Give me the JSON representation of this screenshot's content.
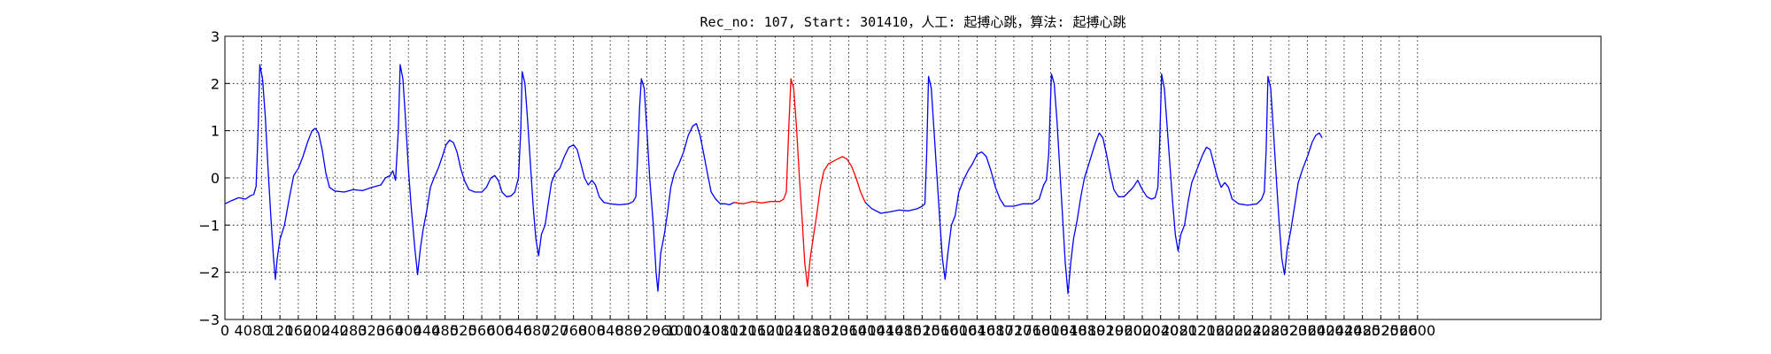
{
  "chart_data": {
    "type": "line",
    "title": "Rec_no: 107, Start: 301410，人工: 起搏心跳，算法: 起搏心跳",
    "xlabel": "",
    "ylabel": "",
    "xlim": [
      0,
      3000
    ],
    "ylim": [
      -3,
      3
    ],
    "grid": true,
    "grid_style": "dotted",
    "xticks": [
      0,
      40,
      80,
      120,
      160,
      200,
      240,
      280,
      320,
      360,
      400,
      440,
      480,
      520,
      560,
      600,
      640,
      680,
      720,
      760,
      800,
      840,
      880,
      920,
      960,
      1000,
      1040,
      1080,
      1120,
      1160,
      1200,
      1240,
      1280,
      1320,
      1360,
      1400,
      1440,
      1480,
      1520,
      1560,
      1600,
      1640,
      1680,
      1720,
      1760,
      1800,
      1840,
      1880,
      1920,
      1960,
      2000,
      2040,
      2080,
      2120,
      2160,
      2200,
      2240,
      2280,
      2320,
      2360,
      2400,
      2440,
      2480,
      2520,
      2560,
      2600
    ],
    "yticks": [
      -3,
      -2,
      -1,
      0,
      1,
      2,
      3
    ],
    "ytick_labels": [
      "−3",
      "−2",
      "−1",
      "0",
      "1",
      "2",
      "3"
    ],
    "colors": {
      "normal": "#0000ff",
      "highlight": "#ff0000"
    },
    "series": [
      {
        "color": "#0000ff",
        "points": [
          [
            0,
            -0.55
          ],
          [
            15,
            -0.48
          ],
          [
            30,
            -0.42
          ],
          [
            45,
            -0.45
          ],
          [
            55,
            -0.38
          ],
          [
            63,
            -0.35
          ],
          [
            68,
            -0.18
          ],
          [
            72,
            0.9
          ],
          [
            76,
            2.4
          ],
          [
            82,
            2.1
          ],
          [
            88,
            1.3
          ],
          [
            94,
            0.2
          ],
          [
            100,
            -0.8
          ],
          [
            106,
            -1.7
          ],
          [
            110,
            -2.15
          ],
          [
            114,
            -1.7
          ],
          [
            120,
            -1.3
          ],
          [
            130,
            -1.0
          ],
          [
            140,
            -0.45
          ],
          [
            150,
            0.05
          ],
          [
            160,
            0.2
          ],
          [
            170,
            0.45
          ],
          [
            180,
            0.75
          ],
          [
            190,
            1.0
          ],
          [
            197,
            1.05
          ],
          [
            204,
            0.95
          ],
          [
            212,
            0.6
          ],
          [
            220,
            0.1
          ],
          [
            228,
            -0.2
          ],
          [
            240,
            -0.28
          ],
          [
            260,
            -0.3
          ],
          [
            280,
            -0.25
          ],
          [
            300,
            -0.27
          ],
          [
            320,
            -0.2
          ],
          [
            340,
            -0.15
          ],
          [
            350,
            0.0
          ],
          [
            360,
            0.05
          ],
          [
            366,
            0.15
          ],
          [
            372,
            -0.05
          ],
          [
            378,
            1.0
          ],
          [
            382,
            2.4
          ],
          [
            388,
            2.1
          ],
          [
            394,
            1.2
          ],
          [
            400,
            0.2
          ],
          [
            406,
            -0.6
          ],
          [
            414,
            -1.5
          ],
          [
            420,
            -2.05
          ],
          [
            426,
            -1.5
          ],
          [
            432,
            -1.1
          ],
          [
            440,
            -0.7
          ],
          [
            448,
            -0.2
          ],
          [
            456,
            0.0
          ],
          [
            465,
            0.2
          ],
          [
            474,
            0.45
          ],
          [
            482,
            0.7
          ],
          [
            490,
            0.8
          ],
          [
            498,
            0.75
          ],
          [
            506,
            0.55
          ],
          [
            514,
            0.2
          ],
          [
            522,
            -0.05
          ],
          [
            532,
            -0.25
          ],
          [
            545,
            -0.3
          ],
          [
            560,
            -0.3
          ],
          [
            570,
            -0.2
          ],
          [
            580,
            0.0
          ],
          [
            588,
            0.05
          ],
          [
            596,
            -0.05
          ],
          [
            604,
            -0.3
          ],
          [
            614,
            -0.4
          ],
          [
            624,
            -0.38
          ],
          [
            632,
            -0.3
          ],
          [
            640,
            0.0
          ],
          [
            645,
            1.0
          ],
          [
            648,
            2.25
          ],
          [
            654,
            2.0
          ],
          [
            660,
            1.2
          ],
          [
            666,
            0.3
          ],
          [
            672,
            -0.6
          ],
          [
            678,
            -1.3
          ],
          [
            684,
            -1.65
          ],
          [
            690,
            -1.2
          ],
          [
            698,
            -1.0
          ],
          [
            704,
            -0.6
          ],
          [
            712,
            -0.1
          ],
          [
            720,
            0.1
          ],
          [
            730,
            0.2
          ],
          [
            740,
            0.45
          ],
          [
            750,
            0.65
          ],
          [
            760,
            0.7
          ],
          [
            768,
            0.6
          ],
          [
            776,
            0.3
          ],
          [
            784,
            0.0
          ],
          [
            792,
            -0.15
          ],
          [
            800,
            -0.05
          ],
          [
            808,
            -0.15
          ],
          [
            816,
            -0.4
          ],
          [
            826,
            -0.52
          ],
          [
            840,
            -0.55
          ],
          [
            860,
            -0.57
          ],
          [
            880,
            -0.55
          ],
          [
            890,
            -0.5
          ],
          [
            896,
            -0.4
          ],
          [
            900,
            0.5
          ],
          [
            904,
            1.5
          ],
          [
            908,
            2.1
          ],
          [
            914,
            1.9
          ],
          [
            920,
            1.0
          ],
          [
            926,
            0.0
          ],
          [
            934,
            -1.0
          ],
          [
            940,
            -2.0
          ],
          [
            944,
            -2.4
          ],
          [
            950,
            -1.6
          ],
          [
            958,
            -1.2
          ],
          [
            964,
            -0.8
          ],
          [
            972,
            -0.2
          ],
          [
            980,
            0.1
          ],
          [
            990,
            0.3
          ],
          [
            1000,
            0.55
          ],
          [
            1010,
            0.9
          ],
          [
            1020,
            1.1
          ],
          [
            1028,
            1.15
          ],
          [
            1036,
            0.9
          ],
          [
            1044,
            0.5
          ],
          [
            1052,
            0.1
          ],
          [
            1060,
            -0.3
          ],
          [
            1070,
            -0.45
          ],
          [
            1080,
            -0.55
          ],
          [
            1090,
            -0.55
          ],
          [
            1100,
            -0.57
          ],
          [
            1110,
            -0.52
          ]
        ]
      },
      {
        "color": "#ff0000",
        "points": [
          [
            1110,
            -0.52
          ],
          [
            1130,
            -0.55
          ],
          [
            1150,
            -0.5
          ],
          [
            1170,
            -0.53
          ],
          [
            1190,
            -0.5
          ],
          [
            1210,
            -0.5
          ],
          [
            1218,
            -0.45
          ],
          [
            1224,
            -0.3
          ],
          [
            1230,
            1.2
          ],
          [
            1234,
            2.1
          ],
          [
            1240,
            1.9
          ],
          [
            1246,
            1.1
          ],
          [
            1252,
            0.1
          ],
          [
            1258,
            -0.8
          ],
          [
            1264,
            -1.8
          ],
          [
            1270,
            -2.3
          ],
          [
            1276,
            -1.7
          ],
          [
            1282,
            -1.3
          ],
          [
            1290,
            -0.8
          ],
          [
            1298,
            -0.2
          ],
          [
            1306,
            0.15
          ],
          [
            1316,
            0.3
          ],
          [
            1326,
            0.35
          ],
          [
            1336,
            0.4
          ],
          [
            1346,
            0.45
          ],
          [
            1356,
            0.4
          ],
          [
            1366,
            0.25
          ],
          [
            1376,
            0.0
          ],
          [
            1386,
            -0.3
          ],
          [
            1396,
            -0.52
          ]
        ]
      },
      {
        "color": "#0000ff",
        "points": [
          [
            1396,
            -0.52
          ],
          [
            1410,
            -0.65
          ],
          [
            1430,
            -0.75
          ],
          [
            1450,
            -0.72
          ],
          [
            1470,
            -0.68
          ],
          [
            1490,
            -0.7
          ],
          [
            1510,
            -0.65
          ],
          [
            1520,
            -0.6
          ],
          [
            1526,
            -0.55
          ],
          [
            1530,
            0.5
          ],
          [
            1534,
            2.15
          ],
          [
            1540,
            1.9
          ],
          [
            1546,
            1.0
          ],
          [
            1552,
            0.1
          ],
          [
            1558,
            -0.8
          ],
          [
            1564,
            -1.7
          ],
          [
            1570,
            -2.15
          ],
          [
            1576,
            -1.6
          ],
          [
            1584,
            -1.0
          ],
          [
            1592,
            -0.8
          ],
          [
            1600,
            -0.3
          ],
          [
            1610,
            -0.05
          ],
          [
            1620,
            0.15
          ],
          [
            1630,
            0.3
          ],
          [
            1640,
            0.5
          ],
          [
            1650,
            0.55
          ],
          [
            1660,
            0.45
          ],
          [
            1670,
            0.15
          ],
          [
            1680,
            -0.2
          ],
          [
            1690,
            -0.45
          ],
          [
            1700,
            -0.6
          ],
          [
            1720,
            -0.6
          ],
          [
            1740,
            -0.55
          ],
          [
            1760,
            -0.55
          ],
          [
            1775,
            -0.45
          ],
          [
            1785,
            -0.15
          ],
          [
            1791,
            -0.05
          ],
          [
            1796,
            0.5
          ],
          [
            1802,
            2.2
          ],
          [
            1808,
            2.0
          ],
          [
            1814,
            1.2
          ],
          [
            1820,
            0.2
          ],
          [
            1826,
            -0.8
          ],
          [
            1832,
            -1.8
          ],
          [
            1838,
            -2.45
          ],
          [
            1844,
            -1.8
          ],
          [
            1850,
            -1.3
          ],
          [
            1858,
            -0.9
          ],
          [
            1866,
            -0.4
          ],
          [
            1874,
            0.0
          ],
          [
            1882,
            0.25
          ],
          [
            1890,
            0.5
          ],
          [
            1898,
            0.75
          ],
          [
            1906,
            0.95
          ],
          [
            1914,
            0.85
          ],
          [
            1922,
            0.5
          ],
          [
            1930,
            0.1
          ],
          [
            1938,
            -0.25
          ],
          [
            1948,
            -0.4
          ],
          [
            1960,
            -0.4
          ],
          [
            1970,
            -0.3
          ],
          [
            1980,
            -0.2
          ],
          [
            1990,
            -0.05
          ],
          [
            2000,
            -0.25
          ],
          [
            2010,
            -0.4
          ],
          [
            2020,
            -0.45
          ],
          [
            2028,
            -0.42
          ],
          [
            2034,
            -0.2
          ],
          [
            2038,
            0.8
          ],
          [
            2042,
            2.2
          ],
          [
            2048,
            1.9
          ],
          [
            2054,
            1.1
          ],
          [
            2060,
            0.3
          ],
          [
            2066,
            -0.5
          ],
          [
            2072,
            -1.2
          ],
          [
            2078,
            -1.55
          ],
          [
            2084,
            -1.2
          ],
          [
            2092,
            -1.0
          ],
          [
            2100,
            -0.5
          ],
          [
            2108,
            -0.1
          ],
          [
            2116,
            0.1
          ],
          [
            2124,
            0.3
          ],
          [
            2132,
            0.5
          ],
          [
            2140,
            0.65
          ],
          [
            2148,
            0.6
          ],
          [
            2156,
            0.3
          ],
          [
            2164,
            0.0
          ],
          [
            2172,
            -0.2
          ],
          [
            2180,
            -0.1
          ],
          [
            2188,
            -0.2
          ],
          [
            2196,
            -0.45
          ],
          [
            2210,
            -0.55
          ],
          [
            2230,
            -0.58
          ],
          [
            2250,
            -0.55
          ],
          [
            2260,
            -0.45
          ],
          [
            2266,
            -0.3
          ],
          [
            2270,
            0.6
          ],
          [
            2274,
            2.15
          ],
          [
            2280,
            1.9
          ],
          [
            2286,
            1.0
          ],
          [
            2292,
            0.0
          ],
          [
            2298,
            -0.9
          ],
          [
            2304,
            -1.7
          ],
          [
            2310,
            -2.05
          ],
          [
            2316,
            -1.5
          ],
          [
            2324,
            -1.1
          ],
          [
            2332,
            -0.6
          ],
          [
            2340,
            -0.1
          ],
          [
            2350,
            0.2
          ],
          [
            2360,
            0.45
          ],
          [
            2370,
            0.75
          ],
          [
            2378,
            0.9
          ],
          [
            2386,
            0.95
          ],
          [
            2392,
            0.85
          ]
        ]
      }
    ]
  }
}
